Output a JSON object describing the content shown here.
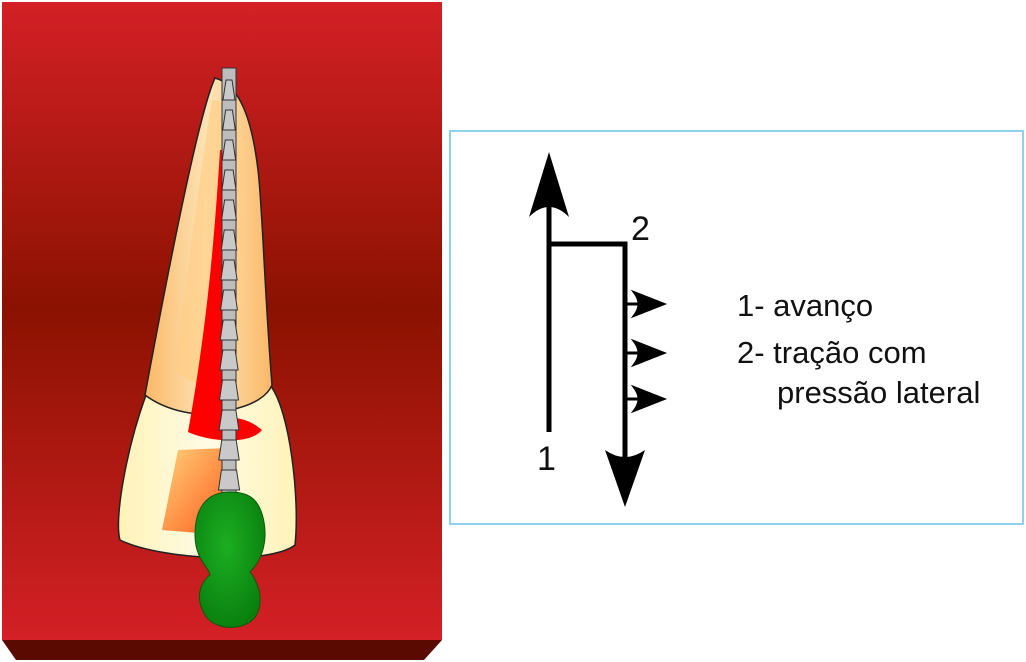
{
  "illustration": {
    "background_colors": {
      "top": "#d42026",
      "middle": "#8b1200",
      "bottom_edge": "#5a0a00"
    },
    "colors": {
      "root_outer": "#fdd59a",
      "root_inner": "#f7a44a",
      "crown": "#fff8cc",
      "canal": "#ff0000",
      "file": "#bfbfbf",
      "handle": "#0a8a12"
    }
  },
  "diagram": {
    "label_1": "1",
    "label_2": "2",
    "legend": {
      "line1": "1- avanço",
      "line2": "2- tração com",
      "line3": "pressão lateral"
    },
    "border_color": "#8fd0ea"
  }
}
